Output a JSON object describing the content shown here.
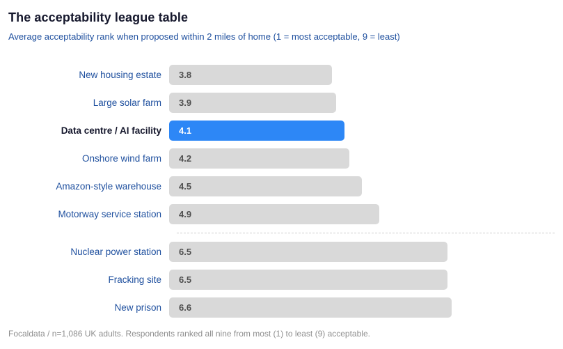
{
  "header": {
    "title": "The acceptability league table",
    "subtitle": "Average acceptability rank when proposed within 2 miles of home (1 = most acceptable, 9 = least)"
  },
  "chart_data": {
    "type": "bar",
    "orientation": "horizontal",
    "categories": [
      "New housing estate",
      "Large solar farm",
      "Data centre / AI facility",
      "Onshore wind farm",
      "Amazon-style warehouse",
      "Motorway service station",
      "Nuclear power station",
      "Fracking site",
      "New prison"
    ],
    "values": [
      3.8,
      3.9,
      4.1,
      4.2,
      4.5,
      4.9,
      6.5,
      6.5,
      6.6
    ],
    "value_decimals": 1,
    "highlight_index": 2,
    "separator_after_index": 5,
    "xlim": [
      0,
      9
    ],
    "grid": false,
    "legend": "none",
    "data_labels": "inside-start",
    "colors": {
      "bar": "#d9d9d9",
      "highlight_bar": "#2d87f6",
      "value_text": "#4f4f4f",
      "highlight_value_text": "#ffffff",
      "label_text": "#1e4f9e",
      "highlight_label_text": "#16182d",
      "separator": "#cfcfcf"
    }
  },
  "footer": {
    "source": "Focaldata / n=1,086 UK adults. Respondents ranked all nine from most (1) to least (9) acceptable."
  }
}
